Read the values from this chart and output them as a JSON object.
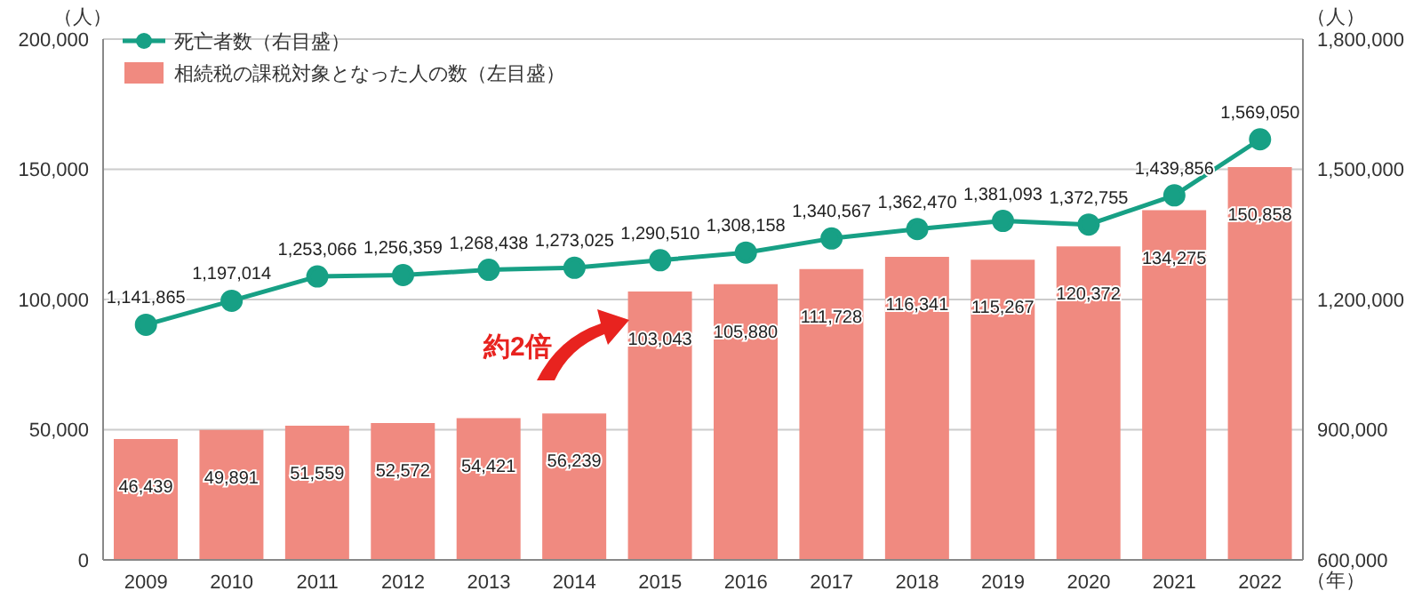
{
  "chart_data": {
    "type": "bar",
    "categories": [
      "2009",
      "2010",
      "2011",
      "2012",
      "2013",
      "2014",
      "2015",
      "2016",
      "2017",
      "2018",
      "2019",
      "2020",
      "2021",
      "2022"
    ],
    "xlabel": "（年）",
    "ylabel": "（人）",
    "y2label": "（人）",
    "series": [
      {
        "type": "line",
        "axis": "y2",
        "name": "死亡者数（右目盛）",
        "color": "#17a085",
        "marker": "circle",
        "values": [
          1141865,
          1197014,
          1253066,
          1256359,
          1268438,
          1273025,
          1290510,
          1308158,
          1340567,
          1362470,
          1381093,
          1372755,
          1439856,
          1569050
        ],
        "value_labels": [
          "1,141,865",
          "1,197,014",
          "1,253,066",
          "1,256,359",
          "1,268,438",
          "1,273,025",
          "1,290,510",
          "1,308,158",
          "1,340,567",
          "1,362,470",
          "1,381,093",
          "1,372,755",
          "1,439,856",
          "1,569,050"
        ]
      },
      {
        "name": "相続税の課税対象となった人の数（左目盛）",
        "color": "#f08a80",
        "values": [
          46439,
          49891,
          51559,
          52572,
          54421,
          56239,
          103043,
          105880,
          111728,
          116341,
          115267,
          120372,
          134275,
          150858
        ],
        "value_labels": [
          "46,439",
          "49,891",
          "51,559",
          "52,572",
          "54,421",
          "56,239",
          "103,043",
          "105,880",
          "111,728",
          "116,341",
          "115,267",
          "120,372",
          "134,275",
          "150,858"
        ]
      }
    ],
    "ylim": [
      0,
      200000
    ],
    "yticks": [
      0,
      {
        "value": 50000,
        "label": "50,000"
      },
      {
        "value": 100000,
        "label": "100,000"
      },
      {
        "value": 150000,
        "label": "150,000"
      },
      {
        "value": 200000,
        "label": "200,000"
      }
    ],
    "y2lim": [
      600000,
      1800000
    ],
    "y2ticks": [
      {
        "value": 600000,
        "label": "600,000"
      },
      {
        "value": 900000,
        "label": "900,000"
      },
      {
        "value": 1200000,
        "label": "1,200,000"
      },
      {
        "value": 1500000,
        "label": "1,500,000"
      },
      {
        "value": 1800000,
        "label": "1,800,000"
      }
    ],
    "grid": "y",
    "legend": "top left",
    "annotations": [
      "約2倍"
    ]
  }
}
